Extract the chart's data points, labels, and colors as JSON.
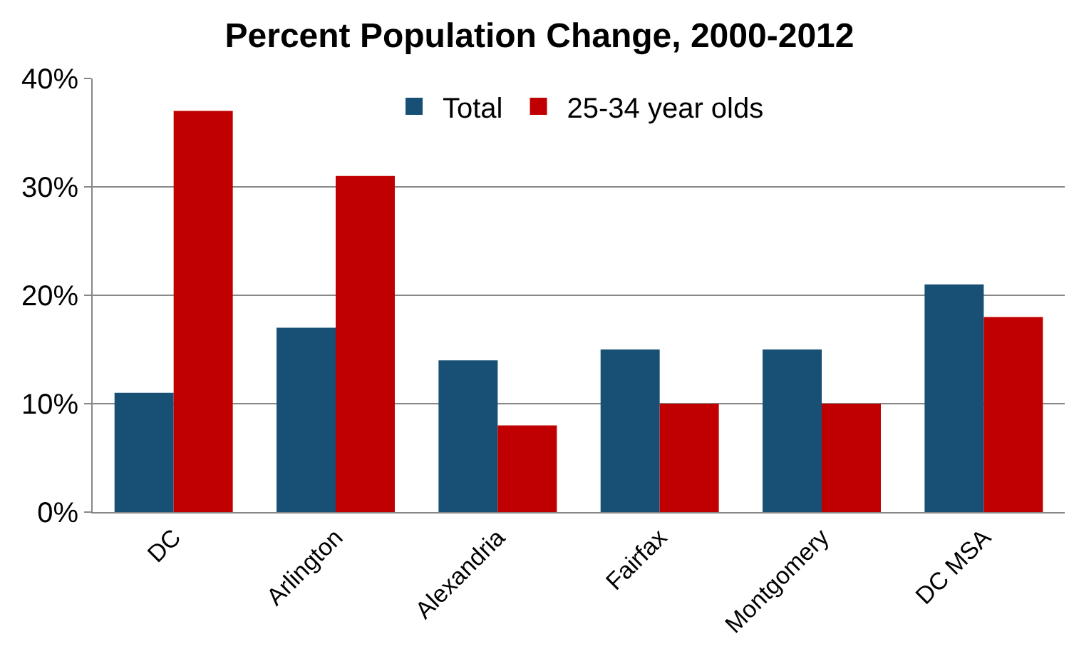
{
  "chart_data": {
    "type": "bar",
    "title": "Percent Population Change, 2000-2012",
    "categories": [
      "DC",
      "Arlington",
      "Alexandria",
      "Fairfax",
      "Montgomery",
      "DC MSA"
    ],
    "series": [
      {
        "name": "Total",
        "color": "#174f75",
        "values": [
          11,
          17,
          14,
          15,
          15,
          21
        ]
      },
      {
        "name": "25-34 year olds",
        "color": "#c00000",
        "values": [
          37,
          31,
          8,
          10,
          10,
          18
        ]
      }
    ],
    "ylim": [
      0,
      40
    ],
    "yticks": [
      {
        "value": 0,
        "label": "0%"
      },
      {
        "value": 10,
        "label": "10%"
      },
      {
        "value": 20,
        "label": "20%"
      },
      {
        "value": 30,
        "label": "30%"
      },
      {
        "value": 40,
        "label": "40%"
      }
    ],
    "grid": "y",
    "legend": "top"
  }
}
